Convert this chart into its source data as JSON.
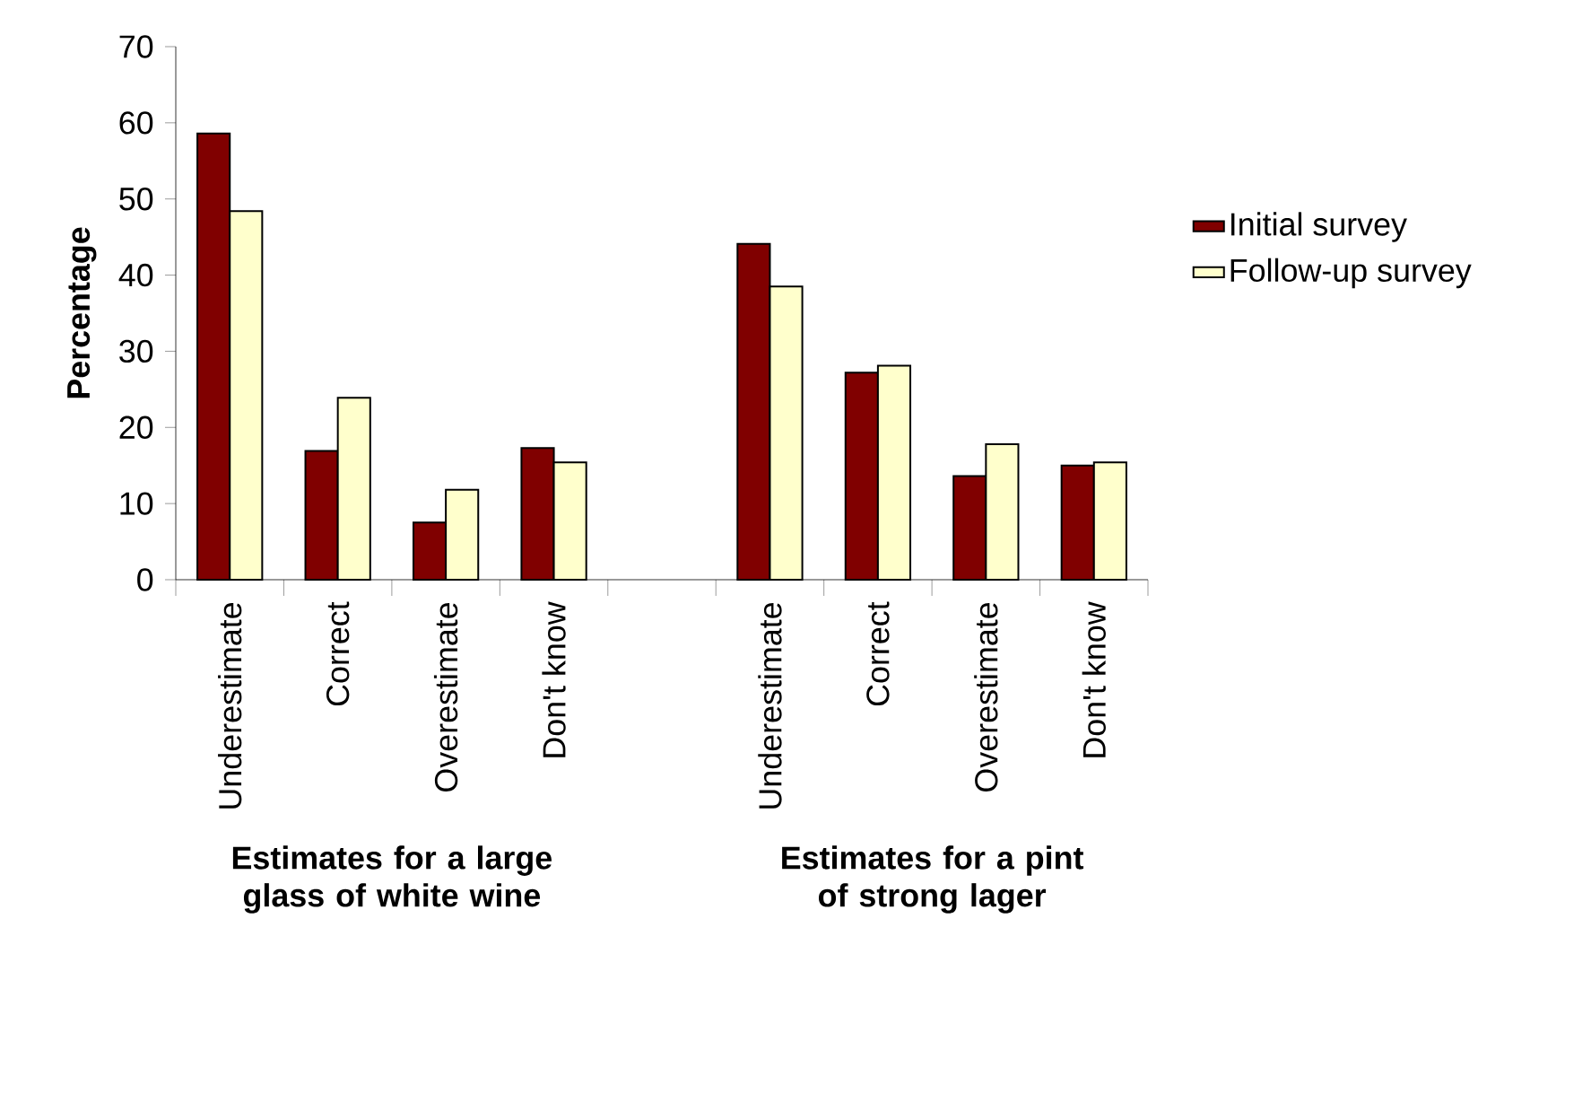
{
  "chart_data": {
    "type": "bar",
    "ylabel": "Percentage",
    "categories": [
      "Underestimate",
      "Correct",
      "Overestimate",
      "Don't know",
      null,
      "Underestimate",
      "Correct",
      "Overestimate",
      "Don't know"
    ],
    "series": [
      {
        "name": "Initial survey",
        "color": "#800000",
        "values": [
          58.6,
          16.9,
          7.5,
          17.3,
          null,
          44.1,
          27.2,
          13.6,
          15.0
        ]
      },
      {
        "name": "Follow-up survey",
        "color": "#ffffcc",
        "values": [
          48.4,
          23.9,
          11.8,
          15.4,
          null,
          38.5,
          28.1,
          17.8,
          15.4
        ]
      }
    ],
    "ylim": [
      0,
      70
    ],
    "yticks": [
      0,
      10,
      20,
      30,
      40,
      50,
      60,
      70
    ],
    "legend": "right",
    "annotations": [
      "**Estimates for a large glass of white wine**",
      "**Estimates for a pint of strong lager**"
    ]
  }
}
